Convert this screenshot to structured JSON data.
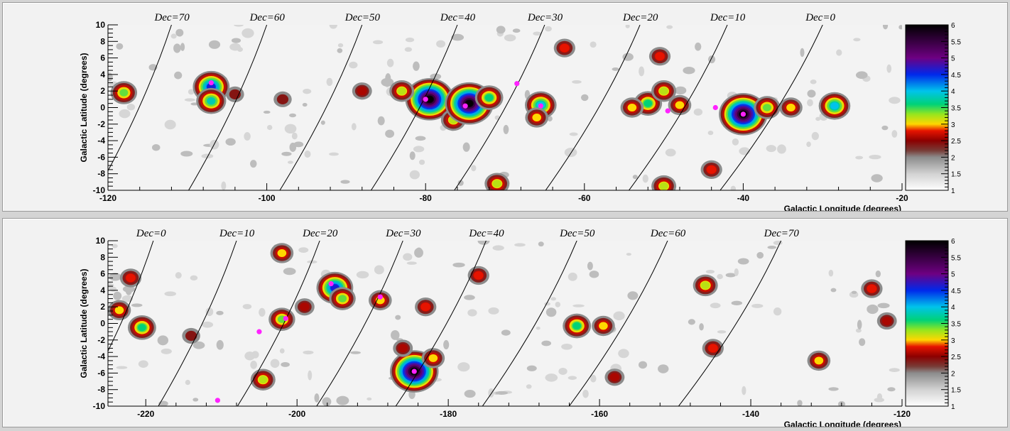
{
  "chart_data": [
    {
      "type": "heatmap",
      "xlabel": "Galactic Longitude (degrees)",
      "ylabel": "Galactic Latitude (degrees)",
      "xlim": [
        -120,
        -20
      ],
      "ylim": [
        -10,
        10
      ],
      "x_ticks": [
        -120,
        -100,
        -80,
        -60,
        -40,
        -20
      ],
      "y_ticks": [
        -10,
        -8,
        -6,
        -4,
        -2,
        0,
        2,
        4,
        6,
        8,
        10
      ],
      "x_tick_labels": [
        "-120",
        "-100",
        "-80",
        "-60",
        "-40",
        "-20"
      ],
      "y_tick_labels": [
        "-10",
        "-8",
        "-6",
        "-4",
        "-2",
        "0",
        "2",
        "4",
        "6",
        "8",
        "10"
      ],
      "colorbar": {
        "range": [
          1,
          6
        ],
        "tick_values": [
          1,
          1.5,
          2,
          2.5,
          3,
          3.5,
          4,
          4.5,
          5,
          5.5,
          6
        ],
        "tick_labels": [
          "1",
          "1.5",
          "2",
          "2.5",
          "3",
          "3.5",
          "4",
          "4.5",
          "5",
          "5.5",
          "6"
        ]
      },
      "dec_lines": [
        {
          "label": "Dec=70",
          "x_top": -112
        },
        {
          "label": "Dec=60",
          "x_top": -100
        },
        {
          "label": "Dec=50",
          "x_top": -88
        },
        {
          "label": "Dec=40",
          "x_top": -76
        },
        {
          "label": "Dec=30",
          "x_top": -65
        },
        {
          "label": "Dec=20",
          "x_top": -53
        },
        {
          "label": "Dec=10",
          "x_top": -42
        },
        {
          "label": "Dec=0",
          "x_top": -30
        }
      ],
      "hot_spots": [
        {
          "x": -107,
          "y": 2.5,
          "v": 4.6
        },
        {
          "x": -107,
          "y": 0.8,
          "v": 3.8
        },
        {
          "x": -118,
          "y": 1.8,
          "v": 3.4
        },
        {
          "x": -79.5,
          "y": 1.0,
          "v": 6.0
        },
        {
          "x": -83,
          "y": 2.0,
          "v": 3.2
        },
        {
          "x": -76.5,
          "y": -1.5,
          "v": 3.2
        },
        {
          "x": -74.5,
          "y": 0.5,
          "v": 6.0
        },
        {
          "x": -72,
          "y": 1.2,
          "v": 3.6
        },
        {
          "x": -65.5,
          "y": 0.3,
          "v": 4.0
        },
        {
          "x": -66,
          "y": -1.2,
          "v": 3.0
        },
        {
          "x": -71,
          "y": -9.2,
          "v": 3.2
        },
        {
          "x": -62.5,
          "y": 7.2,
          "v": 2.8
        },
        {
          "x": -52,
          "y": 0.5,
          "v": 3.6
        },
        {
          "x": -50,
          "y": 2.0,
          "v": 3.2
        },
        {
          "x": -54,
          "y": 0.0,
          "v": 3.0
        },
        {
          "x": -48,
          "y": 0.3,
          "v": 3.0
        },
        {
          "x": -50.5,
          "y": 6.2,
          "v": 2.8
        },
        {
          "x": -50,
          "y": -9.5,
          "v": 3.2
        },
        {
          "x": -40,
          "y": -0.8,
          "v": 6.0
        },
        {
          "x": -37,
          "y": 0.0,
          "v": 3.4
        },
        {
          "x": -34,
          "y": 0.0,
          "v": 3.0
        },
        {
          "x": -28.5,
          "y": 0.2,
          "v": 4.0
        },
        {
          "x": -44,
          "y": -7.5,
          "v": 2.8
        },
        {
          "x": -88,
          "y": 2.0,
          "v": 2.6
        },
        {
          "x": -104,
          "y": 1.6,
          "v": 2.4
        },
        {
          "x": -98,
          "y": 1.0,
          "v": 2.4
        }
      ],
      "markers": [
        {
          "x": -107,
          "y": 3.0
        },
        {
          "x": -80,
          "y": 1.0
        },
        {
          "x": -75,
          "y": 0.2
        },
        {
          "x": -68.5,
          "y": 2.9
        },
        {
          "x": -65.5,
          "y": 0.2
        },
        {
          "x": -49.5,
          "y": -0.4
        },
        {
          "x": -43.5,
          "y": 0.0
        },
        {
          "x": -40,
          "y": -0.8
        }
      ]
    },
    {
      "type": "heatmap",
      "xlabel": "Galactic Longitude (degrees)",
      "ylabel": "Galactic Latitude (degrees)",
      "xlim": [
        -225,
        -120
      ],
      "ylim": [
        -10,
        10
      ],
      "x_ticks": [
        -220,
        -200,
        -180,
        -160,
        -140,
        -120
      ],
      "y_ticks": [
        -10,
        -8,
        -6,
        -4,
        -2,
        0,
        2,
        4,
        6,
        8,
        10
      ],
      "x_tick_labels": [
        "-220",
        "-200",
        "-180",
        "-160",
        "-140",
        "-120"
      ],
      "y_tick_labels": [
        "-10",
        "-8",
        "-6",
        "-4",
        "-2",
        "0",
        "2",
        "4",
        "6",
        "8",
        "10"
      ],
      "colorbar": {
        "range": [
          1,
          6
        ],
        "tick_values": [
          1,
          1.5,
          2,
          2.5,
          3,
          3.5,
          4,
          4.5,
          5,
          5.5,
          6
        ],
        "tick_labels": [
          "1",
          "1.5",
          "2",
          "2.5",
          "3",
          "3.5",
          "4",
          "4.5",
          "5",
          "5.5",
          "6"
        ]
      },
      "dec_lines": [
        {
          "label": "Dec=0",
          "x_top": -219
        },
        {
          "label": "Dec=10",
          "x_top": -208
        },
        {
          "label": "Dec=20",
          "x_top": -197
        },
        {
          "label": "Dec=30",
          "x_top": -186
        },
        {
          "label": "Dec=40",
          "x_top": -175
        },
        {
          "label": "Dec=50",
          "x_top": -163
        },
        {
          "label": "Dec=60",
          "x_top": -151
        },
        {
          "label": "Dec=70",
          "x_top": -136
        }
      ],
      "hot_spots": [
        {
          "x": -184.5,
          "y": -5.8,
          "v": 6.0
        },
        {
          "x": -182,
          "y": -4.2,
          "v": 3.0
        },
        {
          "x": -186,
          "y": -3.0,
          "v": 2.6
        },
        {
          "x": -195,
          "y": 4.3,
          "v": 4.6
        },
        {
          "x": -194,
          "y": 3.0,
          "v": 3.4
        },
        {
          "x": -220.5,
          "y": -0.5,
          "v": 3.6
        },
        {
          "x": -222,
          "y": 5.5,
          "v": 2.8
        },
        {
          "x": -223.5,
          "y": 1.6,
          "v": 3.0
        },
        {
          "x": -202,
          "y": 0.5,
          "v": 3.4
        },
        {
          "x": -202,
          "y": 8.5,
          "v": 3.0
        },
        {
          "x": -204.5,
          "y": -6.8,
          "v": 3.2
        },
        {
          "x": -189,
          "y": 2.8,
          "v": 3.0
        },
        {
          "x": -183,
          "y": 2.0,
          "v": 2.8
        },
        {
          "x": -176,
          "y": 5.8,
          "v": 2.8
        },
        {
          "x": -163,
          "y": -0.3,
          "v": 3.6
        },
        {
          "x": -159.5,
          "y": -0.3,
          "v": 3.0
        },
        {
          "x": -146,
          "y": 4.6,
          "v": 3.2
        },
        {
          "x": -145,
          "y": -3.0,
          "v": 2.8
        },
        {
          "x": -131,
          "y": -4.5,
          "v": 3.0
        },
        {
          "x": -124,
          "y": 4.2,
          "v": 2.8
        },
        {
          "x": -122,
          "y": 0.3,
          "v": 2.6
        },
        {
          "x": -158,
          "y": -6.5,
          "v": 2.6
        },
        {
          "x": -214,
          "y": -1.5,
          "v": 2.4
        },
        {
          "x": -199,
          "y": 2.0,
          "v": 2.6
        }
      ],
      "markers": [
        {
          "x": -184.5,
          "y": -5.8
        },
        {
          "x": -195.5,
          "y": 4.8
        },
        {
          "x": -189,
          "y": 3.2
        },
        {
          "x": -201.5,
          "y": 0.6
        },
        {
          "x": -205,
          "y": -1.0
        },
        {
          "x": -210.5,
          "y": -9.3
        }
      ]
    }
  ]
}
